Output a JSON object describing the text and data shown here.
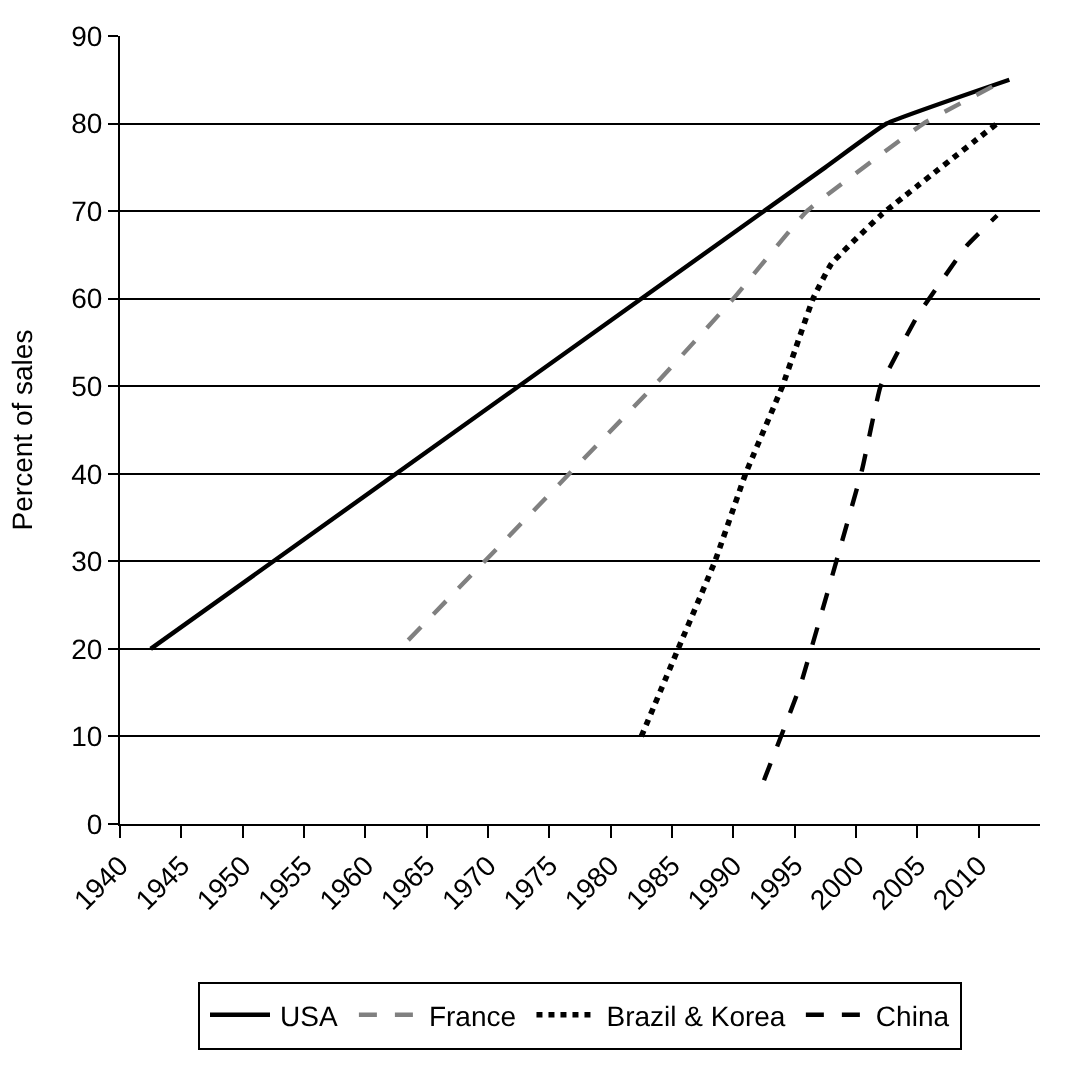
{
  "chart_data": {
    "type": "line",
    "ylabel": "Percent of sales",
    "series": [
      {
        "name": "USA",
        "color": "#000000",
        "line_style": "solid",
        "x": [
          1942.5,
          1997.5,
          2002.5,
          2012.5
        ],
        "values": [
          20,
          75,
          80,
          85
        ]
      },
      {
        "name": "France",
        "color": "#808080",
        "line_style": "dashed",
        "x": [
          1963.5,
          1983.5,
          1990,
          1996,
          2005.5,
          2011.5
        ],
        "values": [
          21,
          50,
          60,
          70,
          80,
          84.5
        ]
      },
      {
        "name": "Brazil & Korea",
        "color": "#000000",
        "line_style": "dotted",
        "x": [
          1982.5,
          1985.5,
          1988.5,
          1991,
          1994,
          1995,
          1996.5,
          1998,
          2002,
          2011.5
        ],
        "values": [
          10,
          20,
          30,
          40,
          50,
          54,
          60,
          64,
          69.5,
          80
        ]
      },
      {
        "name": "China",
        "color": "#000000",
        "line_style": "dashed",
        "x": [
          1992.5,
          1995.5,
          2000.5,
          2002,
          2005,
          2009,
          2011.5
        ],
        "values": [
          5,
          16,
          40.5,
          50,
          58,
          66,
          69.5
        ]
      }
    ],
    "xlim": [
      1940,
      2015
    ],
    "xticks": [
      1940,
      1945,
      1950,
      1955,
      1960,
      1965,
      1970,
      1975,
      1980,
      1985,
      1990,
      1995,
      2000,
      2005,
      2010
    ],
    "ylim": [
      0,
      90
    ],
    "yticks": [
      0,
      10,
      20,
      30,
      40,
      50,
      60,
      70,
      80,
      90
    ],
    "grid": "y",
    "legend": "bottom",
    "marker": "none"
  }
}
